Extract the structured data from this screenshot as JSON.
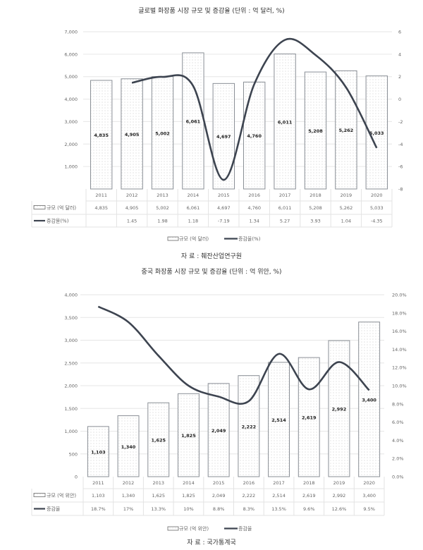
{
  "chart_data": [
    {
      "type": "bar+line",
      "title": "글로벌 화장품 시장 규모 및 증감율 (단위 : 억 달러, %)",
      "categories": [
        "2011",
        "2012",
        "2013",
        "2014",
        "2015",
        "2016",
        "2017",
        "2018",
        "2019",
        "2020"
      ],
      "series": [
        {
          "name": "규모 (억 달러)",
          "kind": "bar",
          "axis": "left",
          "values": [
            4835,
            4905,
            5002,
            6061,
            4697,
            4760,
            6011,
            5208,
            5262,
            5033
          ],
          "labels": [
            "4,835",
            "4,905",
            "5,002",
            "6,061",
            "4,697",
            "4,760",
            "6,011",
            "5,208",
            "5,262",
            "5,033"
          ]
        },
        {
          "name": "증감율(%)",
          "kind": "line",
          "axis": "right",
          "values": [
            null,
            1.45,
            1.98,
            1.18,
            -7.19,
            1.34,
            5.27,
            3.93,
            1.04,
            -4.35
          ],
          "labels": [
            "",
            "1.45",
            "1.98",
            "1.18",
            "-7.19",
            "1.34",
            "5.27",
            "3.93",
            "1.04",
            "-4.35"
          ]
        }
      ],
      "yleft": {
        "range": [
          0,
          7000
        ],
        "ticks": [
          "",
          "1,000",
          "2,000",
          "3,000",
          "4,000",
          "5,000",
          "6,000",
          "7,000"
        ]
      },
      "yright": {
        "range": [
          -8,
          6
        ],
        "ticks": [
          "-8",
          "-6",
          "-4",
          "-2",
          "0",
          "2",
          "4",
          "6"
        ]
      },
      "legend": "bottom",
      "grid": true,
      "source": "자 료 : 췌잔산업연구원"
    },
    {
      "type": "bar+line",
      "title": "중국 화장품 시장 규모 및 증감율 (단위 : 억 위안, %)",
      "categories": [
        "2011",
        "2012",
        "2013",
        "2014",
        "2015",
        "2016",
        "2017",
        "2018",
        "2019",
        "2020"
      ],
      "series": [
        {
          "name": "규모 (억 위안)",
          "kind": "bar",
          "axis": "left",
          "values": [
            1103,
            1340,
            1625,
            1825,
            2049,
            2222,
            2514,
            2619,
            2992,
            3400
          ],
          "labels": [
            "1,103",
            "1,340",
            "1,625",
            "1,825",
            "2,049",
            "2,222",
            "2,514",
            "2,619",
            "2,992",
            "3,400"
          ]
        },
        {
          "name": "증감율",
          "kind": "line",
          "axis": "right",
          "values": [
            18.7,
            17,
            13.3,
            10,
            8.8,
            8.3,
            13.5,
            9.6,
            12.6,
            9.5
          ],
          "labels": [
            "18.7%",
            "17%",
            "13.3%",
            "10%",
            "8.8%",
            "8.3%",
            "13.5%",
            "9.6%",
            "12.6%",
            "9.5%"
          ]
        }
      ],
      "yleft": {
        "range": [
          0,
          4000
        ],
        "ticks": [
          "0",
          "500",
          "1,000",
          "1,500",
          "2,000",
          "2,500",
          "3,000",
          "3,500",
          "4,000"
        ]
      },
      "yright": {
        "range": [
          0,
          20
        ],
        "ticks": [
          "0.0%",
          "2.0%",
          "4.0%",
          "6.0%",
          "8.0%",
          "10.0%",
          "12.0%",
          "14.0%",
          "16.0%",
          "18.0%",
          "20.0%"
        ]
      },
      "legend": "bottom",
      "grid": true,
      "source": "자 료 : 국가통계국"
    }
  ]
}
